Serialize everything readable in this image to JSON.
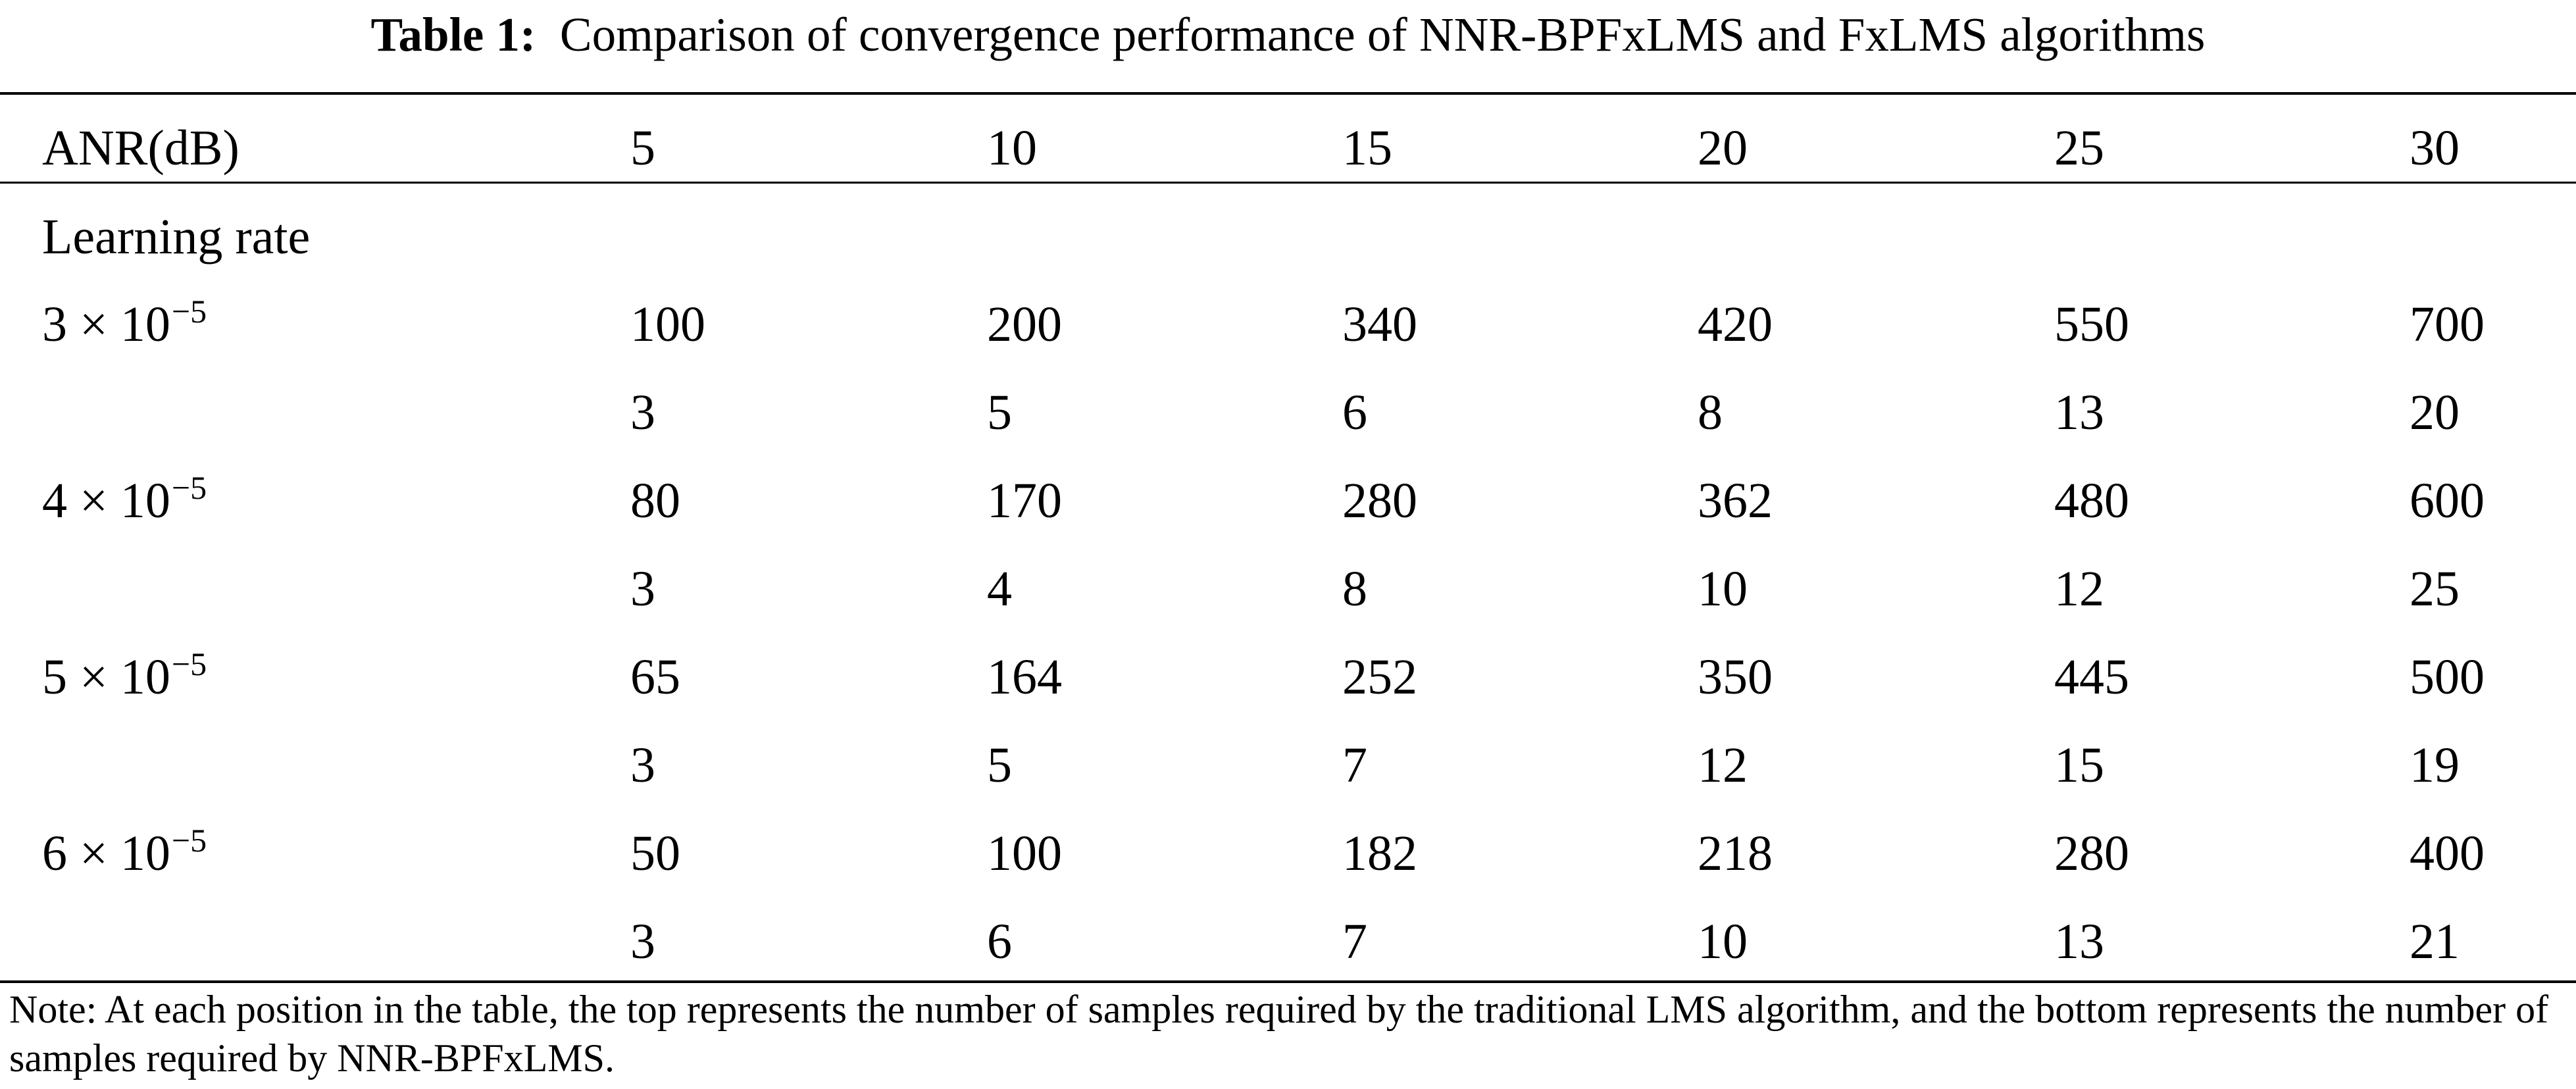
{
  "table": {
    "caption_label": "Table 1:",
    "caption_text": "Comparison of convergence performance of NNR-BPFxLMS and FxLMS algorithms",
    "header": {
      "row_label": "ANR(dB)",
      "columns": [
        "5",
        "10",
        "15",
        "20",
        "25",
        "30"
      ]
    },
    "section_label": "Learning rate",
    "groups": [
      {
        "rate_mantissa": "3 × 10",
        "rate_exponent": "−5",
        "lms": [
          "100",
          "200",
          "340",
          "420",
          "550",
          "700"
        ],
        "nnr": [
          "3",
          "5",
          "6",
          "8",
          "13",
          "20"
        ]
      },
      {
        "rate_mantissa": "4 × 10",
        "rate_exponent": "−5",
        "lms": [
          "80",
          "170",
          "280",
          "362",
          "480",
          "600"
        ],
        "nnr": [
          "3",
          "4",
          "8",
          "10",
          "12",
          "25"
        ]
      },
      {
        "rate_mantissa": "5 × 10",
        "rate_exponent": "−5",
        "lms": [
          "65",
          "164",
          "252",
          "350",
          "445",
          "500"
        ],
        "nnr": [
          "3",
          "5",
          "7",
          "12",
          "15",
          "19"
        ]
      },
      {
        "rate_mantissa": "6 × 10",
        "rate_exponent": "−5",
        "lms": [
          "50",
          "100",
          "182",
          "218",
          "280",
          "400"
        ],
        "nnr": [
          "3",
          "6",
          "7",
          "10",
          "13",
          "21"
        ]
      }
    ],
    "note": "Note: At each position in the table, the top represents the number of samples required by the traditional LMS algorithm, and the bottom represents the number of samples required by NNR-BPFxLMS."
  }
}
